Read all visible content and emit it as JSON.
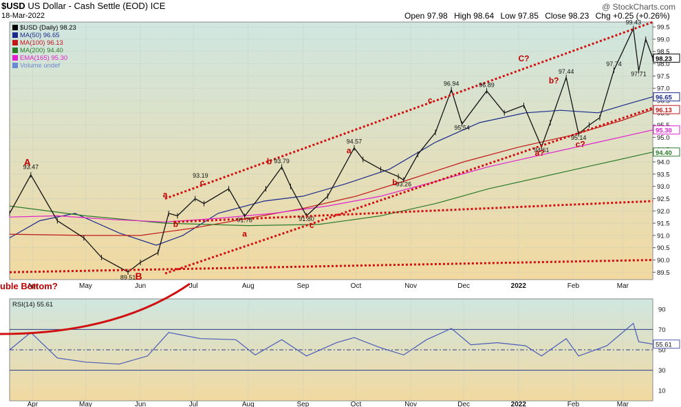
{
  "header": {
    "symbol": "$USD",
    "name": "US Dollar - Cash Settle (EOD)",
    "exchange": "ICE",
    "date": "18-Mar-2022",
    "open_label": "Open",
    "open": "97.98",
    "high_label": "High",
    "high": "98.64",
    "low_label": "Low",
    "low": "97.85",
    "close_label": "Close",
    "close": "98.23",
    "chg_label": "Chg",
    "chg": "+0.25 (+0.26%)",
    "watermark": "@ StockCharts.com"
  },
  "legend": [
    {
      "text": "$USD (Daily) 98.23",
      "color": "#000000"
    },
    {
      "text": "MA(50) 96.65",
      "color": "#1a2a8a"
    },
    {
      "text": "MA(100) 96.13",
      "color": "#c01818"
    },
    {
      "text": "MA(200) 94.40",
      "color": "#2a7a2a"
    },
    {
      "text": "EMA(165) 95.30",
      "color": "#e020d0"
    },
    {
      "text": "Volume undef",
      "color": "#6a8ad0"
    }
  ],
  "rsi_legend": "RSI(14) 55.61",
  "colors": {
    "price": "#111111",
    "ma50": "#1a2a8a",
    "ma100": "#c01818",
    "ma200": "#2a7a2a",
    "ema165": "#e020d0",
    "rsi": "#4a5ab8",
    "trend": "#d01010",
    "annotation": "#c00000",
    "bg_top": "#cfe6e0",
    "bg_bottom": "#f2d9a0"
  },
  "annotations": [
    {
      "text": "A",
      "date": "2021-03-29",
      "price": 93.85,
      "size": "large"
    },
    {
      "text": "B",
      "date": "2021-05-31",
      "price": 89.2,
      "size": "large"
    },
    {
      "text": "a",
      "date": "2021-06-15",
      "price": 92.55,
      "size": "med"
    },
    {
      "text": "b",
      "date": "2021-06-21",
      "price": 91.35,
      "size": "med"
    },
    {
      "text": "c",
      "date": "2021-07-06",
      "price": 93.05,
      "size": "med"
    },
    {
      "text": "a",
      "date": "2021-07-30",
      "price": 90.95,
      "size": "med"
    },
    {
      "text": "b",
      "date": "2021-08-13",
      "price": 93.9,
      "size": "med"
    },
    {
      "text": "c",
      "date": "2021-09-06",
      "price": 91.3,
      "size": "med"
    },
    {
      "text": "a",
      "date": "2021-09-27",
      "price": 94.35,
      "size": "med"
    },
    {
      "text": "b",
      "date": "2021-10-23",
      "price": 93.05,
      "size": "med"
    },
    {
      "text": "c",
      "date": "2021-11-12",
      "price": 96.4,
      "size": "med"
    },
    {
      "text": "C?",
      "date": "2022-01-04",
      "price": 98.1,
      "size": "med"
    },
    {
      "text": "b?",
      "date": "2022-01-21",
      "price": 97.2,
      "size": "med"
    },
    {
      "text": "a?",
      "date": "2022-01-13",
      "price": 94.25,
      "size": "med"
    },
    {
      "text": "c?",
      "date": "2022-02-05",
      "price": 94.6,
      "size": "med"
    }
  ],
  "double_bottom_label": "uble Bottom?",
  "price_labels": [
    {
      "text": "93.47",
      "date": "2021-03-31",
      "price": 93.7
    },
    {
      "text": "89.51",
      "date": "2021-05-25",
      "price": 89.2
    },
    {
      "text": "93.19",
      "date": "2021-07-05",
      "price": 93.35
    },
    {
      "text": "91.78",
      "date": "2021-07-30",
      "price": 91.55
    },
    {
      "text": "93.79",
      "date": "2021-08-20",
      "price": 93.95
    },
    {
      "text": "91.80",
      "date": "2021-09-03",
      "price": 91.58
    },
    {
      "text": "94.57",
      "date": "2021-09-30",
      "price": 94.75
    },
    {
      "text": "93.26",
      "date": "2021-10-28",
      "price": 93.0
    },
    {
      "text": "96.94",
      "date": "2021-11-24",
      "price": 97.1
    },
    {
      "text": "95.54",
      "date": "2021-11-30",
      "price": 95.3
    },
    {
      "text": "96.89",
      "date": "2021-12-14",
      "price": 97.05
    },
    {
      "text": "97.44",
      "date": "2022-01-28",
      "price": 97.6
    },
    {
      "text": "94.61",
      "date": "2022-01-14",
      "price": 94.4
    },
    {
      "text": "95.14",
      "date": "2022-02-04",
      "price": 94.9
    },
    {
      "text": "97.74",
      "date": "2022-02-24",
      "price": 97.9
    },
    {
      "text": "99.43",
      "date": "2022-03-07",
      "price": 99.6
    },
    {
      "text": "97.71",
      "date": "2022-03-10",
      "price": 97.5
    }
  ],
  "price_axis_ticks": [
    "99.5",
    "99.0",
    "98.5",
    "98.0",
    "97.5",
    "97.0",
    "96.5",
    "96.0",
    "95.5",
    "95.0",
    "94.5",
    "94.0",
    "93.5",
    "93.0",
    "92.5",
    "92.0",
    "91.5",
    "91.0",
    "90.5",
    "90.0",
    "89.5"
  ],
  "price_axis_tags": [
    {
      "text": "98.23",
      "color": "#000000"
    },
    {
      "text": "96.65",
      "color": "#1a2a8a"
    },
    {
      "text": "96.13",
      "color": "#c01818"
    },
    {
      "text": "95.30",
      "color": "#e020d0"
    },
    {
      "text": "94.40",
      "color": "#2a7a2a"
    }
  ],
  "rsi_axis_ticks": [
    "90",
    "70",
    "50",
    "30",
    "10"
  ],
  "rsi_axis_tag": "55.61",
  "chart_data": {
    "type": "line",
    "title": "$USD US Dollar - Cash Settle (EOD) ICE",
    "x_tick_labels": [
      "Apr",
      "May",
      "Jun",
      "Jul",
      "Aug",
      "Sep",
      "Oct",
      "Nov",
      "Dec",
      "2022",
      "Feb",
      "Mar"
    ],
    "x_tick_dates": [
      "2021-04-01",
      "2021-05-01",
      "2021-06-01",
      "2021-07-01",
      "2021-08-01",
      "2021-09-01",
      "2021-10-01",
      "2021-11-01",
      "2021-12-01",
      "2022-01-01",
      "2022-02-01",
      "2022-03-01"
    ],
    "x_range": [
      "2021-03-19",
      "2022-03-18"
    ],
    "ylim": [
      89.2,
      99.7
    ],
    "rsi_ylim": [
      0,
      100
    ],
    "log_scale": false,
    "grid": true,
    "series": [
      {
        "name": "$USD (Daily)",
        "kind": "price",
        "x": [
          "2021-03-19",
          "2021-03-31",
          "2021-04-15",
          "2021-04-30",
          "2021-05-10",
          "2021-05-25",
          "2021-06-01",
          "2021-06-11",
          "2021-06-17",
          "2021-06-22",
          "2021-07-02",
          "2021-07-07",
          "2021-07-21",
          "2021-07-30",
          "2021-08-11",
          "2021-08-20",
          "2021-08-25",
          "2021-09-03",
          "2021-09-15",
          "2021-09-30",
          "2021-10-05",
          "2021-10-15",
          "2021-10-25",
          "2021-10-28",
          "2021-11-05",
          "2021-11-15",
          "2021-11-24",
          "2021-11-30",
          "2021-12-14",
          "2021-12-24",
          "2022-01-04",
          "2022-01-14",
          "2022-01-19",
          "2022-01-28",
          "2022-02-04",
          "2022-02-10",
          "2022-02-16",
          "2022-02-24",
          "2022-03-07",
          "2022-03-10",
          "2022-03-14",
          "2022-03-18"
        ],
        "values": [
          91.9,
          93.47,
          91.6,
          90.9,
          90.1,
          89.51,
          89.9,
          90.3,
          91.9,
          91.8,
          92.5,
          92.3,
          92.9,
          91.78,
          92.9,
          93.79,
          93.0,
          91.8,
          92.6,
          94.57,
          94.1,
          93.7,
          93.4,
          93.26,
          94.3,
          95.2,
          96.94,
          95.54,
          96.89,
          96.0,
          96.3,
          94.61,
          95.6,
          97.44,
          95.14,
          95.5,
          95.8,
          97.74,
          99.43,
          97.71,
          99.0,
          98.23
        ]
      },
      {
        "name": "MA(50)",
        "kind": "ma",
        "x": [
          "2021-03-19",
          "2021-04-05",
          "2021-04-25",
          "2021-05-20",
          "2021-06-10",
          "2021-06-25",
          "2021-07-15",
          "2021-08-10",
          "2021-09-01",
          "2021-09-25",
          "2021-10-20",
          "2021-11-15",
          "2021-12-10",
          "2022-01-05",
          "2022-01-25",
          "2022-02-15",
          "2022-03-01",
          "2022-03-18"
        ],
        "values": [
          90.9,
          91.6,
          91.9,
          91.1,
          90.6,
          91.0,
          91.9,
          92.4,
          92.6,
          93.1,
          93.7,
          94.8,
          95.6,
          96.0,
          96.1,
          96.0,
          96.3,
          96.65
        ]
      },
      {
        "name": "MA(100)",
        "kind": "ma",
        "x": [
          "2021-03-19",
          "2021-05-01",
          "2021-06-01",
          "2021-07-01",
          "2021-08-01",
          "2021-09-01",
          "2021-10-01",
          "2021-11-01",
          "2021-12-01",
          "2022-01-01",
          "2022-02-01",
          "2022-03-01",
          "2022-03-18"
        ],
        "values": [
          91.05,
          91.0,
          91.0,
          91.3,
          91.7,
          92.1,
          92.6,
          93.3,
          94.0,
          94.6,
          95.1,
          95.7,
          96.13
        ]
      },
      {
        "name": "MA(200)",
        "kind": "ma",
        "x": [
          "2021-03-19",
          "2021-05-01",
          "2021-06-15",
          "2021-08-01",
          "2021-09-10",
          "2021-10-15",
          "2021-11-15",
          "2021-12-15",
          "2022-01-15",
          "2022-02-15",
          "2022-03-18"
        ],
        "values": [
          92.2,
          91.8,
          91.5,
          91.4,
          91.45,
          91.8,
          92.3,
          92.9,
          93.4,
          93.9,
          94.4
        ]
      },
      {
        "name": "EMA(165)",
        "kind": "ma",
        "x": [
          "2021-03-19",
          "2021-04-15",
          "2021-05-15",
          "2021-06-15",
          "2021-07-15",
          "2021-08-15",
          "2021-09-15",
          "2021-10-15",
          "2021-11-15",
          "2021-12-15",
          "2022-01-15",
          "2022-02-15",
          "2022-03-18"
        ],
        "values": [
          91.75,
          91.8,
          91.65,
          91.55,
          91.7,
          91.9,
          92.2,
          92.6,
          93.2,
          93.8,
          94.3,
          94.8,
          95.3
        ]
      }
    ],
    "trendlines": [
      {
        "x": [
          "2021-06-15",
          "2022-03-18"
        ],
        "values": [
          92.5,
          99.7
        ]
      },
      {
        "x": [
          "2021-06-15",
          "2022-03-18"
        ],
        "values": [
          89.45,
          96.2
        ]
      },
      {
        "x": [
          "2021-06-20",
          "2022-03-18"
        ],
        "values": [
          91.55,
          92.4
        ]
      },
      {
        "x": [
          "2021-03-19",
          "2022-03-18"
        ],
        "values": [
          89.5,
          90.0
        ]
      }
    ],
    "rsi": {
      "name": "RSI(14)",
      "x": [
        "2021-03-19",
        "2021-03-31",
        "2021-04-15",
        "2021-05-01",
        "2021-05-20",
        "2021-06-05",
        "2021-06-17",
        "2021-07-05",
        "2021-07-25",
        "2021-08-05",
        "2021-08-20",
        "2021-09-03",
        "2021-09-20",
        "2021-09-30",
        "2021-10-15",
        "2021-10-28",
        "2021-11-10",
        "2021-11-24",
        "2021-12-05",
        "2021-12-20",
        "2022-01-05",
        "2022-01-14",
        "2022-01-28",
        "2022-02-04",
        "2022-02-20",
        "2022-03-07",
        "2022-03-10",
        "2022-03-18"
      ],
      "values": [
        50,
        67,
        42,
        38,
        36,
        44,
        67,
        61,
        60,
        45,
        60,
        44,
        57,
        62,
        52,
        45,
        60,
        71,
        55,
        57,
        54,
        44,
        61,
        44,
        54,
        76,
        58,
        55.61
      ],
      "reference_lines": [
        70,
        50,
        30
      ]
    }
  }
}
